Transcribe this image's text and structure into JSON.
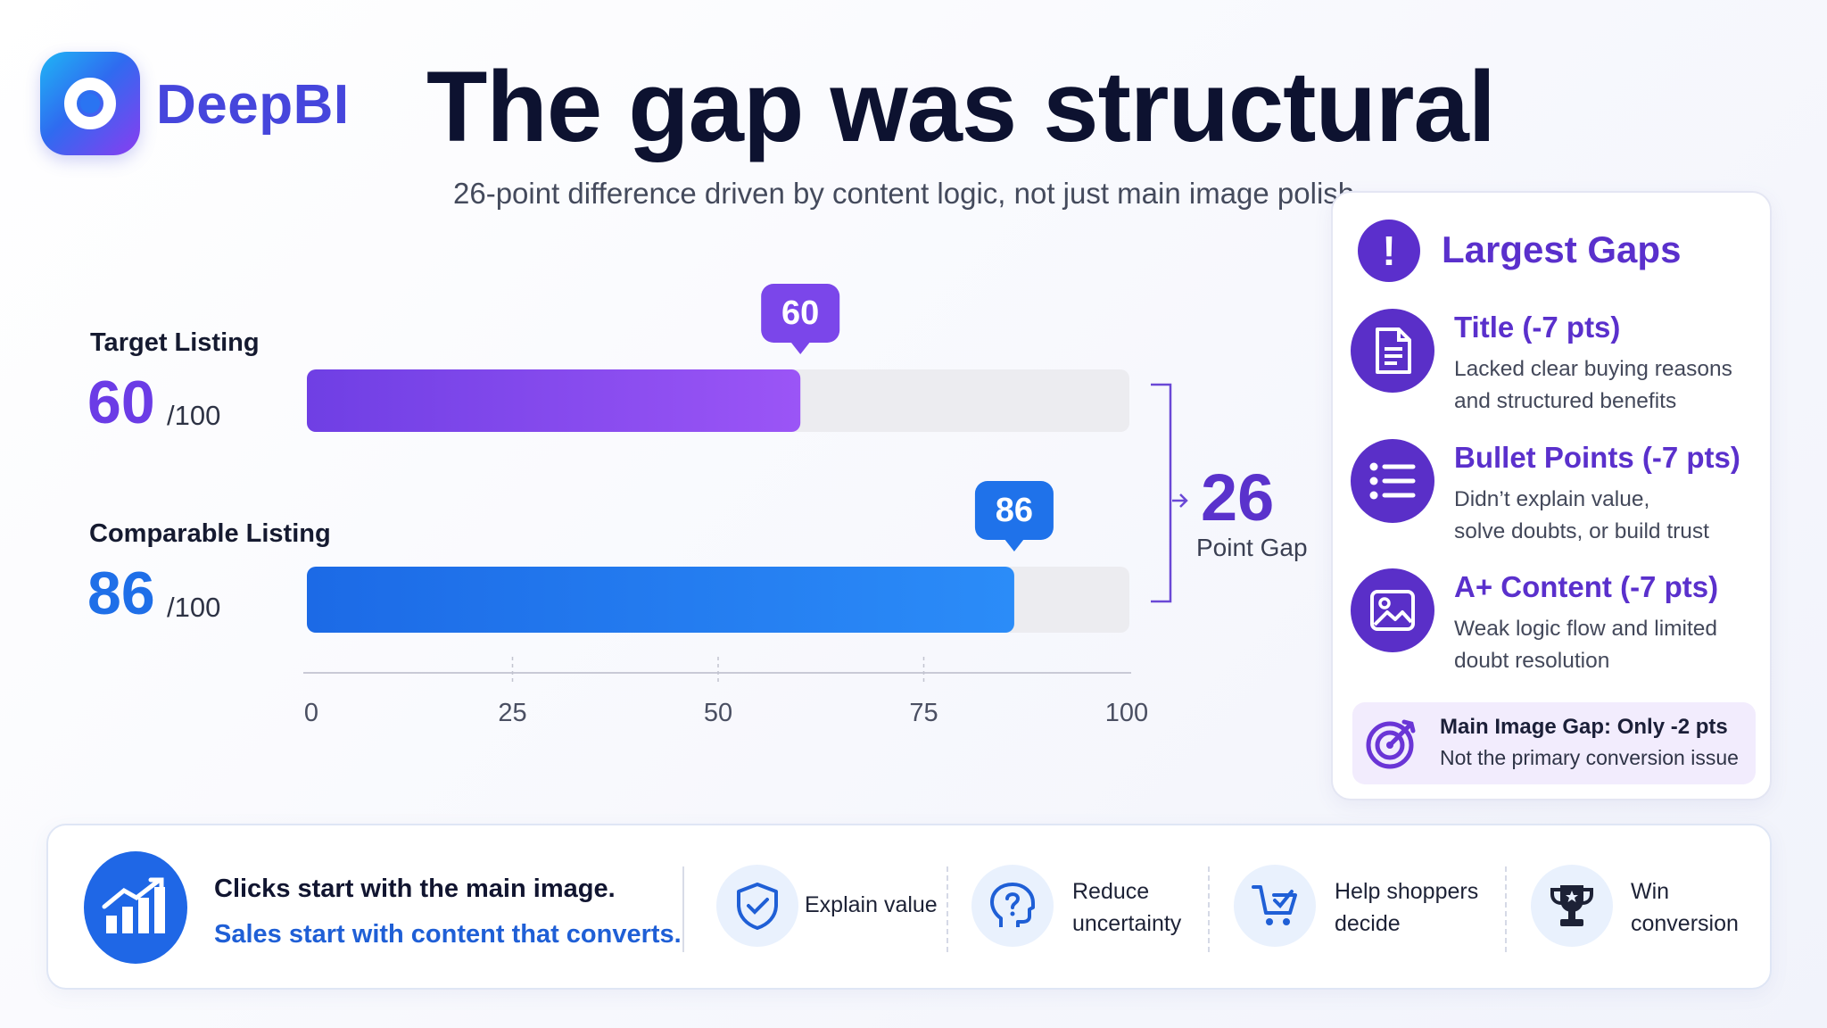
{
  "brand": {
    "name": "DeepBI"
  },
  "header": {
    "title": "The gap was structural",
    "subtitle": "26-point difference driven by content logic, not just main image polish"
  },
  "listings": [
    {
      "label": "Target Listing",
      "score": "60",
      "denominator": "/100",
      "color": "#6b3ce6"
    },
    {
      "label": "Comparable Listing",
      "score": "86",
      "denominator": "/100",
      "color": "#1f6fe8"
    }
  ],
  "gap": {
    "value": "26",
    "label": "Point Gap"
  },
  "chart_data": {
    "type": "bar",
    "orientation": "horizontal",
    "categories": [
      "Target Listing",
      "Comparable Listing"
    ],
    "values": [
      60,
      86
    ],
    "value_labels": [
      "60",
      "86"
    ],
    "xlim": [
      0,
      100
    ],
    "xticks": [
      0,
      25,
      50,
      75,
      100
    ],
    "xtick_labels": [
      "0",
      "25",
      "50",
      "75",
      "100"
    ],
    "colors": [
      "#7a44ee",
      "#1f6fe8"
    ],
    "grid": false
  },
  "largest_gaps": {
    "title": "Largest Gaps",
    "items": [
      {
        "title": "Title (-7 pts)",
        "lines": [
          "Lacked clear buying reasons",
          "and structured benefits"
        ],
        "icon": "document-icon"
      },
      {
        "title": "Bullet Points (-7 pts)",
        "lines": [
          "Didn’t explain value,",
          "solve doubts, or build trust"
        ],
        "icon": "list-icon"
      },
      {
        "title": "A+ Content (-7 pts)",
        "lines": [
          "Weak logic flow and limited",
          "doubt resolution"
        ],
        "icon": "image-icon"
      }
    ],
    "note": {
      "title": "Main Image Gap: Only -2 pts",
      "sub": "Not the primary conversion issue"
    }
  },
  "banner": {
    "line1": "Clicks start with the main image.",
    "line2": "Sales start with content that converts.",
    "steps": [
      {
        "lines": [
          "Explain value"
        ],
        "icon": "shield-check-icon"
      },
      {
        "lines": [
          "Reduce",
          "uncertainty"
        ],
        "icon": "head-question-icon"
      },
      {
        "lines": [
          "Help shoppers",
          "decide"
        ],
        "icon": "cart-check-icon"
      },
      {
        "lines": [
          "Win",
          "conversion"
        ],
        "icon": "trophy-icon"
      }
    ]
  }
}
